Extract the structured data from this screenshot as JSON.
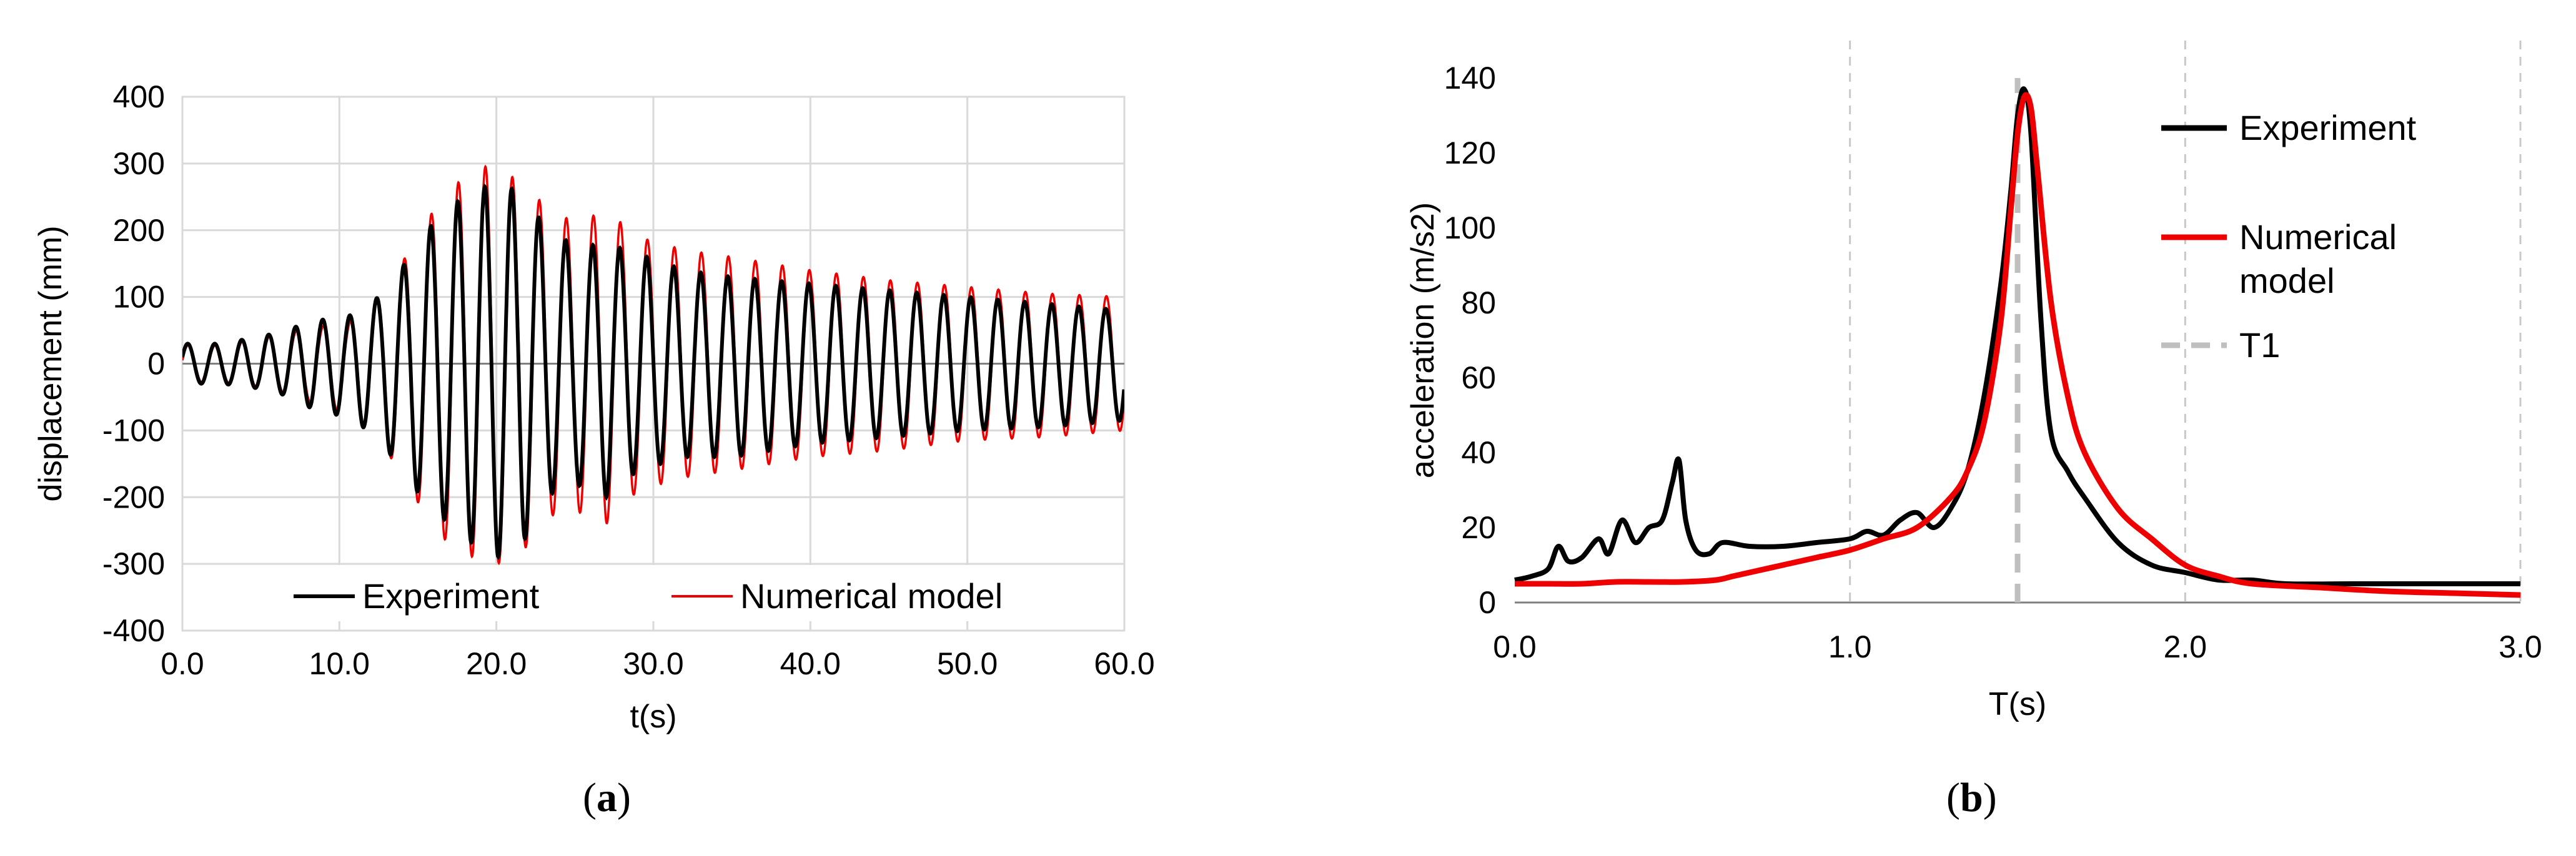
{
  "chart_data": [
    {
      "panel_label": "a",
      "type": "line",
      "xlabel": "t(s)",
      "ylabel": "displacement (mm)",
      "xlim": [
        0,
        60
      ],
      "ylim": [
        -400,
        400
      ],
      "x_ticks": [
        "0.0",
        "10.0",
        "20.0",
        "30.0",
        "40.0",
        "50.0",
        "60.0"
      ],
      "y_ticks": [
        "-400",
        "-300",
        "-200",
        "-100",
        "0",
        "100",
        "200",
        "300",
        "400"
      ],
      "grid": true,
      "legend_position": "bottom",
      "series": [
        {
          "name": "Experiment",
          "color": "#000000",
          "period_s": 1.72,
          "peaks": [
            [
              2.5,
              30
            ],
            [
              5.8,
              45
            ],
            [
              8.5,
              65
            ],
            [
              10.5,
              70
            ],
            [
              12.5,
              100
            ],
            [
              14.5,
              160
            ],
            [
              16.5,
              230
            ],
            [
              18.5,
              255
            ],
            [
              20.0,
              275
            ],
            [
              21.5,
              255
            ],
            [
              23.0,
              210
            ],
            [
              25.0,
              175
            ],
            [
              27.0,
              180
            ],
            [
              29.0,
              165
            ],
            [
              32.0,
              140
            ],
            [
              35.0,
              130
            ],
            [
              40.0,
              120
            ],
            [
              45.0,
              110
            ],
            [
              50.0,
              100
            ],
            [
              55.0,
              90
            ],
            [
              60.0,
              80
            ]
          ],
          "troughs": [
            [
              2.5,
              -30
            ],
            [
              5.8,
              -40
            ],
            [
              8.5,
              -70
            ],
            [
              10.5,
              -80
            ],
            [
              12.5,
              -110
            ],
            [
              14.5,
              -180
            ],
            [
              16.5,
              -230
            ],
            [
              18.5,
              -270
            ],
            [
              20.0,
              -290
            ],
            [
              21.5,
              -280
            ],
            [
              23.0,
              -200
            ],
            [
              25.0,
              -180
            ],
            [
              27.0,
              -200
            ],
            [
              29.0,
              -160
            ],
            [
              32.0,
              -140
            ],
            [
              35.0,
              -140
            ],
            [
              40.0,
              -120
            ],
            [
              45.0,
              -110
            ],
            [
              50.0,
              -100
            ],
            [
              55.0,
              -95
            ],
            [
              60.0,
              -85
            ]
          ]
        },
        {
          "name": "Numerical model",
          "color": "#ee0000",
          "period_s": 1.72,
          "peaks": [
            [
              2.5,
              28
            ],
            [
              5.8,
              42
            ],
            [
              8.5,
              55
            ],
            [
              10.5,
              60
            ],
            [
              12.5,
              100
            ],
            [
              14.5,
              170
            ],
            [
              16.5,
              250
            ],
            [
              18.5,
              290
            ],
            [
              20.0,
              300
            ],
            [
              21.5,
              270
            ],
            [
              23.0,
              240
            ],
            [
              25.0,
              210
            ],
            [
              27.0,
              230
            ],
            [
              29.0,
              190
            ],
            [
              32.0,
              170
            ],
            [
              35.0,
              160
            ],
            [
              40.0,
              140
            ],
            [
              45.0,
              125
            ],
            [
              50.0,
              115
            ],
            [
              55.0,
              105
            ],
            [
              60.0,
              100
            ]
          ],
          "troughs": [
            [
              2.5,
              -28
            ],
            [
              5.8,
              -38
            ],
            [
              8.5,
              -60
            ],
            [
              10.5,
              -75
            ],
            [
              12.5,
              -110
            ],
            [
              14.5,
              -190
            ],
            [
              16.5,
              -260
            ],
            [
              18.5,
              -290
            ],
            [
              20.0,
              -300
            ],
            [
              21.5,
              -290
            ],
            [
              23.0,
              -230
            ],
            [
              25.0,
              -220
            ],
            [
              27.0,
              -240
            ],
            [
              29.0,
              -190
            ],
            [
              32.0,
              -170
            ],
            [
              35.0,
              -160
            ],
            [
              40.0,
              -140
            ],
            [
              45.0,
              -130
            ],
            [
              50.0,
              -115
            ],
            [
              55.0,
              -110
            ],
            [
              60.0,
              -100
            ]
          ]
        }
      ]
    },
    {
      "panel_label": "b",
      "type": "line",
      "xlabel": "T(s)",
      "ylabel": "acceleration (m/s2)",
      "xlim": [
        0,
        3
      ],
      "ylim": [
        0,
        140
      ],
      "x_ticks": [
        "0.0",
        "1.0",
        "2.0",
        "3.0"
      ],
      "y_ticks": [
        "0",
        "20",
        "40",
        "60",
        "80",
        "100",
        "120",
        "140"
      ],
      "grid": "vertical dashed",
      "legend_position": "top-right",
      "series": [
        {
          "name": "Experiment",
          "color": "#000000",
          "x": [
            0,
            0.05,
            0.1,
            0.13,
            0.16,
            0.2,
            0.25,
            0.28,
            0.32,
            0.36,
            0.4,
            0.44,
            0.47,
            0.49,
            0.51,
            0.54,
            0.58,
            0.62,
            0.7,
            0.8,
            0.9,
            1.0,
            1.05,
            1.1,
            1.15,
            1.2,
            1.25,
            1.3,
            1.35,
            1.4,
            1.45,
            1.48,
            1.5,
            1.52,
            1.54,
            1.57,
            1.6,
            1.65,
            1.7,
            1.8,
            1.9,
            2.0,
            2.1,
            2.2,
            2.3,
            2.5,
            2.7,
            2.9,
            3.0
          ],
          "values": [
            6,
            7,
            9,
            15,
            11,
            12,
            17,
            13,
            22,
            16,
            20,
            22,
            32,
            38,
            22,
            14,
            13,
            16,
            15,
            15,
            16,
            17,
            19,
            18,
            22,
            24,
            20,
            25,
            35,
            55,
            85,
            110,
            130,
            137,
            125,
            75,
            45,
            35,
            28,
            16,
            10,
            8,
            6,
            6,
            5,
            5,
            5,
            5,
            5
          ]
        },
        {
          "name": "Numerical model",
          "color": "#ee0000",
          "x": [
            0,
            0.1,
            0.2,
            0.3,
            0.4,
            0.5,
            0.6,
            0.65,
            0.7,
            0.8,
            0.9,
            1.0,
            1.1,
            1.2,
            1.3,
            1.35,
            1.4,
            1.45,
            1.48,
            1.5,
            1.52,
            1.54,
            1.56,
            1.6,
            1.65,
            1.7,
            1.8,
            1.9,
            2.0,
            2.1,
            2.2,
            2.4,
            2.6,
            2.8,
            3.0
          ],
          "values": [
            5,
            5,
            5,
            5.5,
            5.5,
            5.5,
            6,
            7,
            8,
            10,
            12,
            14,
            17,
            20,
            28,
            35,
            48,
            75,
            105,
            125,
            135,
            132,
            115,
            80,
            55,
            40,
            25,
            17,
            10,
            7,
            5,
            4,
            3,
            2.5,
            2
          ]
        },
        {
          "name": "T1",
          "color": "#bfbfbf",
          "style": "dashed",
          "x": [
            1.5,
            1.5
          ],
          "values": [
            0,
            140
          ]
        }
      ]
    }
  ]
}
